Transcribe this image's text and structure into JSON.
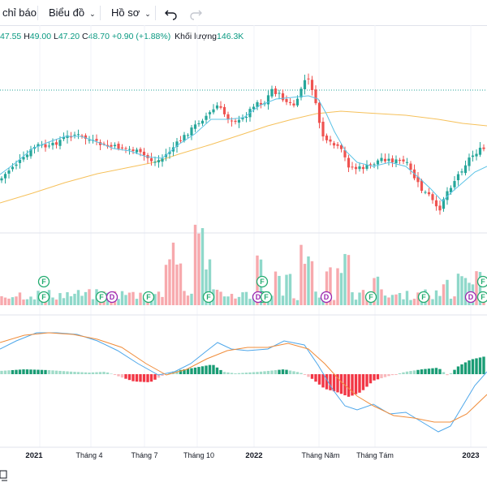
{
  "toolbar": {
    "indicators_label": "chỉ báo",
    "chart_label": "Biểu đồ",
    "profile_label": "Hồ sơ"
  },
  "ohlc": {
    "open_value": "47.55",
    "high_key": "H",
    "high_value": "49.00",
    "low_key": "L",
    "low_value": "47.20",
    "close_key": "C",
    "close_value": "48.70",
    "change": "+0.90 (+1.88%)",
    "volume_key": "Khối lượng",
    "volume_value": "146.3K"
  },
  "colors": {
    "up": "#26a69a",
    "down": "#ef5350",
    "ma_short": "#5cc3e6",
    "ma_long": "#f6c15b",
    "vol_up": "#8fd8ca",
    "vol_down": "#f7a9ad",
    "macd_line": "#4ea7ea",
    "signal_line": "#f08c3a"
  },
  "time_axis": [
    "2021",
    "Tháng 4",
    "Tháng 7",
    "Tháng 10",
    "2022",
    "Tháng Năm",
    "Tháng Tám",
    "2023"
  ],
  "event_markers": [
    {
      "type": "F",
      "position": "upper"
    },
    {
      "type": "F",
      "position": "lower"
    },
    {
      "type": "F",
      "position": "lower"
    },
    {
      "type": "D",
      "position": "lower"
    },
    {
      "type": "F",
      "position": "lower"
    },
    {
      "type": "F",
      "position": "lower"
    },
    {
      "type": "F",
      "position": "upper"
    },
    {
      "type": "F",
      "position": "lower"
    },
    {
      "type": "D",
      "position": "lower"
    },
    {
      "type": "F",
      "position": "lower"
    },
    {
      "type": "D",
      "position": "lower"
    },
    {
      "type": "F",
      "position": "lower"
    },
    {
      "type": "F",
      "position": "lower"
    },
    {
      "type": "D",
      "position": "lower"
    },
    {
      "type": "F",
      "position": "upper"
    },
    {
      "type": "F",
      "position": "lower"
    }
  ]
}
